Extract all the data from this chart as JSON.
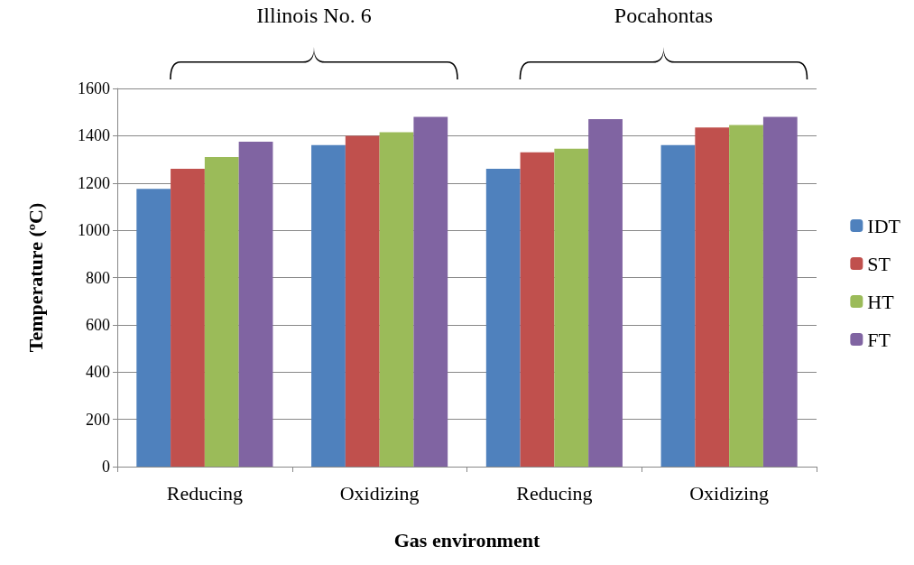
{
  "chart_data": {
    "type": "bar",
    "xlabel": "Gas environment",
    "ylabel": "Temperature (ºC)",
    "categories": [
      "Reducing",
      "Oxidizing",
      "Reducing",
      "Oxidizing"
    ],
    "series": [
      {
        "name": "IDT",
        "color": "#4f81bd",
        "values": [
          1175,
          1360,
          1260,
          1360
        ]
      },
      {
        "name": "ST",
        "color": "#c0504d",
        "values": [
          1260,
          1400,
          1330,
          1435
        ]
      },
      {
        "name": "HT",
        "color": "#9bbb59",
        "values": [
          1310,
          1415,
          1345,
          1445
        ]
      },
      {
        "name": "FT",
        "color": "#8064a2",
        "values": [
          1375,
          1480,
          1470,
          1480
        ]
      }
    ],
    "annotations": [
      "Illinois No. 6",
      "Pocahontas"
    ],
    "ylim": [
      0,
      1600
    ],
    "yticks": [
      0,
      200,
      400,
      600,
      800,
      1000,
      1200,
      1400,
      1600
    ],
    "grid": "y",
    "legend": "right"
  }
}
